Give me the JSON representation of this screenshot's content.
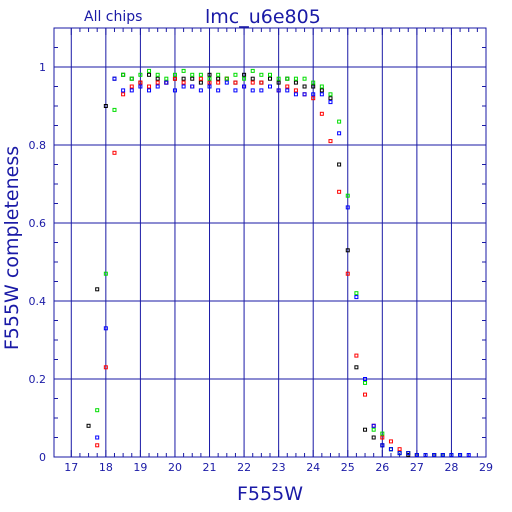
{
  "chart_data": {
    "type": "scatter",
    "title": "lmc_u6e805",
    "subtitle": "All chips",
    "xlabel": "F555W",
    "ylabel": "F555W completeness",
    "xlim": [
      16.5,
      29
    ],
    "ylim": [
      0,
      1.1
    ],
    "x_ticks": [
      17,
      18,
      19,
      20,
      21,
      22,
      23,
      24,
      25,
      26,
      27,
      28,
      29
    ],
    "y_ticks": [
      0,
      0.2,
      0.4,
      0.6,
      0.8,
      1
    ],
    "x_tick_labels": [
      "17",
      "18",
      "19",
      "20",
      "21",
      "22",
      "23",
      "24",
      "25",
      "26",
      "27",
      "28",
      "29"
    ],
    "y_tick_labels": [
      "0",
      "0.2",
      "0.4",
      "0.6",
      "0.8",
      "1"
    ],
    "grid": true,
    "colors": {
      "axis": "#1a1aa6",
      "grid": "#1a1aa6"
    },
    "series": [
      {
        "color": "#000000",
        "x": [
          17.5,
          17.75,
          18.0,
          18.25,
          18.5,
          18.75,
          19.0,
          19.25,
          19.5,
          19.75,
          20.0,
          20.25,
          20.5,
          20.75,
          21.0,
          21.25,
          21.5,
          21.75,
          22.0,
          22.25,
          22.5,
          22.75,
          23.0,
          23.25,
          23.5,
          23.75,
          24.0,
          24.25,
          24.5,
          24.75,
          25.0,
          25.25,
          25.5,
          25.75,
          26.0,
          26.25,
          26.5,
          26.75,
          27.0,
          27.25,
          27.5,
          27.75,
          28.0
        ],
        "y": [
          0.08,
          0.43,
          0.9,
          0.97,
          0.98,
          0.97,
          0.96,
          0.98,
          0.97,
          0.96,
          0.97,
          0.97,
          0.97,
          0.96,
          0.98,
          0.97,
          0.97,
          0.96,
          0.98,
          0.97,
          0.96,
          0.97,
          0.96,
          0.97,
          0.96,
          0.95,
          0.95,
          0.94,
          0.92,
          0.75,
          0.53,
          0.23,
          0.07,
          0.05,
          0.03,
          0.02,
          0.01,
          0.005,
          0.005,
          0.005,
          0.005,
          0.005,
          0.005
        ]
      },
      {
        "color": "#ff0000",
        "x": [
          17.75,
          18.0,
          18.25,
          18.5,
          18.75,
          19.0,
          19.25,
          19.5,
          19.75,
          20.0,
          20.25,
          20.5,
          20.75,
          21.0,
          21.25,
          21.5,
          21.75,
          22.0,
          22.25,
          22.5,
          22.75,
          23.0,
          23.25,
          23.5,
          23.75,
          24.0,
          24.25,
          24.5,
          24.75,
          25.0,
          25.25,
          25.5,
          25.75,
          26.0,
          26.25,
          26.5,
          26.75,
          27.0,
          27.25,
          27.5
        ],
        "y": [
          0.03,
          0.23,
          0.78,
          0.93,
          0.95,
          0.96,
          0.95,
          0.96,
          0.96,
          0.97,
          0.96,
          0.95,
          0.97,
          0.96,
          0.96,
          0.97,
          0.96,
          0.95,
          0.96,
          0.96,
          0.95,
          0.94,
          0.95,
          0.94,
          0.93,
          0.92,
          0.88,
          0.81,
          0.68,
          0.47,
          0.26,
          0.16,
          0.08,
          0.05,
          0.04,
          0.02,
          0.01,
          0.005,
          0.005,
          0.005
        ]
      },
      {
        "color": "#00dd00",
        "x": [
          17.75,
          18.0,
          18.25,
          18.5,
          18.75,
          19.0,
          19.25,
          19.5,
          19.75,
          20.0,
          20.25,
          20.5,
          20.75,
          21.0,
          21.25,
          21.5,
          21.75,
          22.0,
          22.25,
          22.5,
          22.75,
          23.0,
          23.25,
          23.5,
          23.75,
          24.0,
          24.25,
          24.5,
          24.75,
          25.0,
          25.25,
          25.5,
          25.75,
          26.0,
          26.25,
          26.5,
          26.75,
          27.0,
          27.25,
          27.5,
          27.75,
          28.0,
          28.25
        ],
        "y": [
          0.12,
          0.47,
          0.89,
          0.98,
          0.97,
          0.98,
          0.99,
          0.98,
          0.97,
          0.98,
          0.99,
          0.98,
          0.98,
          0.97,
          0.98,
          0.97,
          0.98,
          0.97,
          0.99,
          0.98,
          0.98,
          0.97,
          0.97,
          0.97,
          0.97,
          0.96,
          0.95,
          0.93,
          0.86,
          0.67,
          0.42,
          0.19,
          0.07,
          0.06,
          0.02,
          0.01,
          0.01,
          0.005,
          0.005,
          0.005,
          0.005,
          0.005,
          0.005
        ]
      },
      {
        "color": "#0000ff",
        "x": [
          17.75,
          18.0,
          18.25,
          18.5,
          18.75,
          19.0,
          19.25,
          19.5,
          19.75,
          20.0,
          20.25,
          20.5,
          20.75,
          21.0,
          21.25,
          21.5,
          21.75,
          22.0,
          22.25,
          22.5,
          22.75,
          23.0,
          23.25,
          23.5,
          23.75,
          24.0,
          24.25,
          24.5,
          24.75,
          25.0,
          25.25,
          25.5,
          25.75,
          26.0,
          26.25,
          26.5,
          26.75,
          27.0,
          27.25,
          27.5,
          27.75,
          28.0,
          28.25,
          28.5
        ],
        "y": [
          0.05,
          0.33,
          0.97,
          0.94,
          0.94,
          0.95,
          0.94,
          0.95,
          0.96,
          0.94,
          0.95,
          0.95,
          0.94,
          0.95,
          0.94,
          0.96,
          0.94,
          0.95,
          0.94,
          0.94,
          0.95,
          0.94,
          0.94,
          0.93,
          0.93,
          0.93,
          0.93,
          0.91,
          0.83,
          0.64,
          0.41,
          0.2,
          0.08,
          0.03,
          0.02,
          0.01,
          0.01,
          0.005,
          0.005,
          0.005,
          0.005,
          0.005,
          0.005,
          0.005
        ]
      }
    ]
  }
}
